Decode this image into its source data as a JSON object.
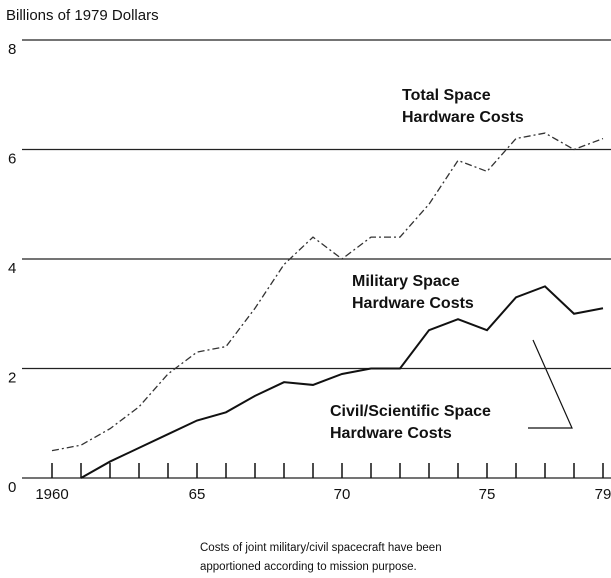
{
  "chart_data": {
    "type": "line",
    "y_label": "Billions of 1979 Dollars",
    "x": [
      1960,
      1961,
      1962,
      1963,
      1964,
      1965,
      1966,
      1967,
      1968,
      1969,
      1970,
      1971,
      1972,
      1973,
      1974,
      1975,
      1976,
      1977,
      1978,
      1979
    ],
    "series": [
      {
        "color": "#333",
        "style": "dashdot",
        "values": [
          0.5,
          0.6,
          0.9,
          1.3,
          1.9,
          2.3,
          2.4,
          3.1,
          3.9,
          4.4,
          4.0,
          4.4,
          4.4,
          5.0,
          5.8,
          5.6,
          6.2,
          6.3,
          6.0,
          6.2
        ]
      },
      {
        "color": "#111",
        "style": "solid",
        "values": [
          null,
          0,
          0.3,
          0.55,
          0.8,
          1.05,
          1.2,
          1.5,
          1.75,
          1.7,
          1.9,
          2.0,
          2.0,
          2.7,
          2.9,
          2.7,
          3.3,
          3.5,
          3.0,
          3.1
        ]
      }
    ],
    "xlim": [
      1960,
      1979
    ],
    "xticks": [
      1960,
      {
        "value": 1965,
        "label": "65"
      },
      {
        "value": 1970,
        "label": "70"
      },
      {
        "value": 1975,
        "label": "75"
      },
      {
        "value": 1979,
        "label": "79"
      }
    ],
    "minor_xticks": [
      1960,
      1961,
      1962,
      1963,
      1964,
      1965,
      1966,
      1967,
      1968,
      1969,
      1970,
      1971,
      1972,
      1973,
      1974,
      1975,
      1976,
      1977,
      1978,
      1979
    ],
    "ylim": [
      0,
      8
    ],
    "yticks": [
      0,
      2,
      4,
      6,
      8
    ],
    "grid": true,
    "annotations": [
      {
        "lines": [
          "Total Space",
          "Hardware Costs"
        ]
      },
      {
        "lines": [
          "Military Space",
          "Hardware Costs"
        ]
      },
      {
        "lines": [
          "Civil/Scientific Space",
          "Hardware Costs"
        ]
      }
    ],
    "note": [
      "Costs of joint military/civil spacecraft have been",
      "apportioned according to mission purpose."
    ]
  }
}
